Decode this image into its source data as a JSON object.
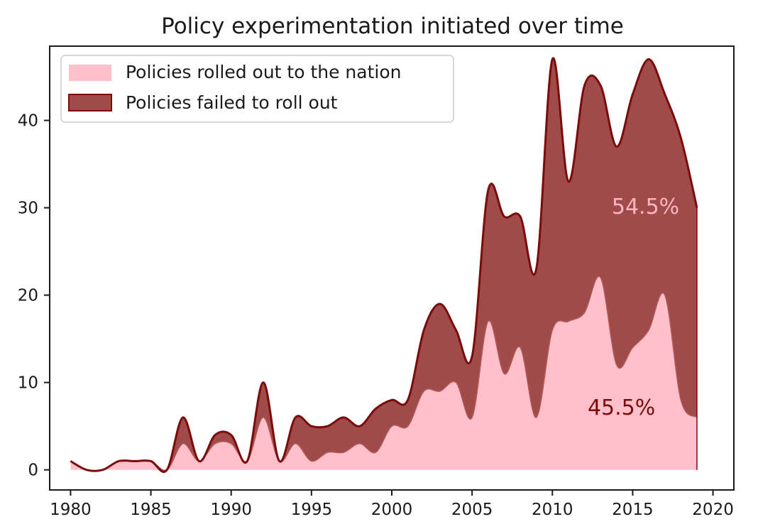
{
  "chart_data": {
    "type": "area",
    "title": "Policy experimentation initiated over time",
    "xlabel": "",
    "ylabel": "",
    "xlim": [
      1978.7,
      2021.3
    ],
    "ylim": [
      -2.3,
      48.5
    ],
    "x_ticks": [
      1980,
      1985,
      1990,
      1995,
      2000,
      2005,
      2010,
      2015,
      2020
    ],
    "y_ticks": [
      0,
      10,
      20,
      30,
      40
    ],
    "grid": false,
    "legend_position": "upper-left",
    "x": [
      1980,
      1981,
      1982,
      1983,
      1984,
      1985,
      1986,
      1987,
      1988,
      1989,
      1990,
      1991,
      1992,
      1993,
      1994,
      1995,
      1996,
      1997,
      1998,
      1999,
      2000,
      2001,
      2002,
      2003,
      2004,
      2005,
      2006,
      2007,
      2008,
      2009,
      2010,
      2011,
      2012,
      2013,
      2014,
      2015,
      2016,
      2017,
      2018,
      2019
    ],
    "series": [
      {
        "name": "Policies rolled out to the nation",
        "color": "#ffc0cb",
        "values": [
          1,
          0,
          0,
          1,
          1,
          1,
          0,
          3,
          1,
          3,
          3,
          1,
          6,
          1,
          3,
          1,
          2,
          2,
          3,
          2,
          5,
          5,
          9,
          9,
          10,
          6,
          17,
          11,
          14,
          6,
          16,
          17,
          18,
          22,
          12,
          14,
          16,
          20,
          8,
          6
        ]
      },
      {
        "name": "Policies failed to roll out",
        "color": "#a04a4a",
        "values": [
          0,
          0,
          0,
          0,
          0,
          0,
          0,
          3,
          0,
          1,
          1,
          0,
          4,
          0,
          3,
          4,
          3,
          4,
          2,
          5,
          3,
          3,
          7,
          10,
          6,
          7,
          15,
          18,
          15,
          17,
          31,
          16,
          26,
          22,
          25,
          29,
          31,
          23,
          30,
          24
        ]
      }
    ],
    "total_line_color": "#7a0c0c",
    "annotations": [
      {
        "text": "54.5%",
        "x": 2015.8,
        "y": 30,
        "color": "#ffb6c1"
      },
      {
        "text": "45.5%",
        "x": 2014.3,
        "y": 7,
        "color": "#7a0c0c"
      }
    ]
  }
}
